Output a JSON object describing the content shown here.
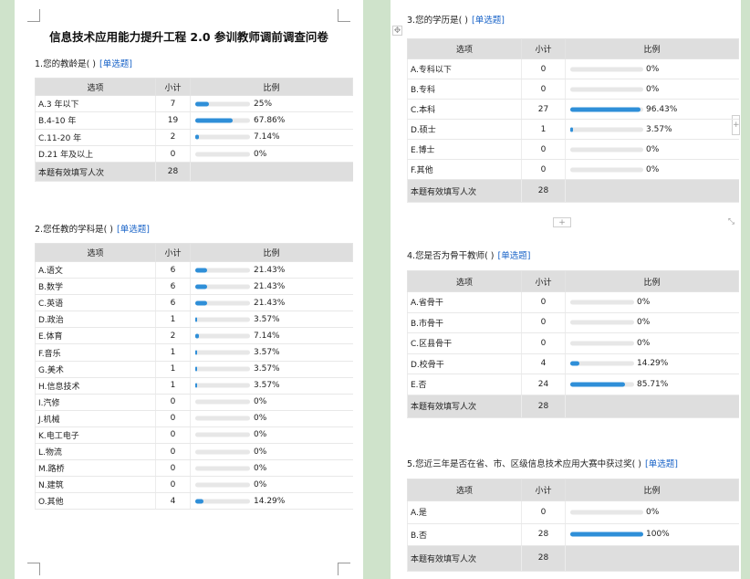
{
  "doc_title": "信息技术应用能力提升工程 2.0 参训教师调前调查问卷",
  "headers": {
    "option": "选项",
    "count": "小计",
    "ratio": "比例"
  },
  "questions": [
    {
      "title": "1.您的教龄是(    )",
      "type": "[单选题]",
      "rows": [
        {
          "option": "A.3 年以下",
          "count": "7",
          "percent": "25%",
          "value": 25
        },
        {
          "option": "B.4-10 年",
          "count": "19",
          "percent": "67.86%",
          "value": 67.86
        },
        {
          "option": "C.11-20 年",
          "count": "2",
          "percent": "7.14%",
          "value": 7.14
        },
        {
          "option": "D.21 年及以上",
          "count": "0",
          "percent": "0%",
          "value": 0
        }
      ],
      "total_label": "本题有效填写人次",
      "total": "28"
    },
    {
      "title": "2.您任教的学科是(    )",
      "type": "[单选题]",
      "rows": [
        {
          "option": "A.语文",
          "count": "6",
          "percent": "21.43%",
          "value": 21.43
        },
        {
          "option": "B.数学",
          "count": "6",
          "percent": "21.43%",
          "value": 21.43
        },
        {
          "option": "C.英语",
          "count": "6",
          "percent": "21.43%",
          "value": 21.43
        },
        {
          "option": "D.政治",
          "count": "1",
          "percent": "3.57%",
          "value": 3.57
        },
        {
          "option": "E.体育",
          "count": "2",
          "percent": "7.14%",
          "value": 7.14
        },
        {
          "option": "F.音乐",
          "count": "1",
          "percent": "3.57%",
          "value": 3.57
        },
        {
          "option": "G.美术",
          "count": "1",
          "percent": "3.57%",
          "value": 3.57
        },
        {
          "option": "H.信息技术",
          "count": "1",
          "percent": "3.57%",
          "value": 3.57
        },
        {
          "option": "I.汽修",
          "count": "0",
          "percent": "0%",
          "value": 0
        },
        {
          "option": "J.机械",
          "count": "0",
          "percent": "0%",
          "value": 0
        },
        {
          "option": "K.电工电子",
          "count": "0",
          "percent": "0%",
          "value": 0
        },
        {
          "option": "L.物流",
          "count": "0",
          "percent": "0%",
          "value": 0
        },
        {
          "option": "M.路桥",
          "count": "0",
          "percent": "0%",
          "value": 0
        },
        {
          "option": "N.建筑",
          "count": "0",
          "percent": "0%",
          "value": 0
        },
        {
          "option": "O.其他",
          "count": "4",
          "percent": "14.29%",
          "value": 14.29
        }
      ]
    },
    {
      "title": "3.您的学历是(    )",
      "type": "[单选题]",
      "rows": [
        {
          "option": "A.专科以下",
          "count": "0",
          "percent": "0%",
          "value": 0
        },
        {
          "option": "B.专科",
          "count": "0",
          "percent": "0%",
          "value": 0
        },
        {
          "option": "C.本科",
          "count": "27",
          "percent": "96.43%",
          "value": 96.43
        },
        {
          "option": "D.硕士",
          "count": "1",
          "percent": "3.57%",
          "value": 3.57
        },
        {
          "option": "E.博士",
          "count": "0",
          "percent": "0%",
          "value": 0
        },
        {
          "option": "F.其他",
          "count": "0",
          "percent": "0%",
          "value": 0
        }
      ],
      "total_label": "本题有效填写人次",
      "total": "28"
    },
    {
      "title": "4.您是否为骨干教师(    )",
      "type": "[单选题]",
      "rows": [
        {
          "option": "A.省骨干",
          "count": "0",
          "percent": "0%",
          "value": 0
        },
        {
          "option": "B.市骨干",
          "count": "0",
          "percent": "0%",
          "value": 0
        },
        {
          "option": "C.区县骨干",
          "count": "0",
          "percent": "0%",
          "value": 0
        },
        {
          "option": "D.校骨干",
          "count": "4",
          "percent": "14.29%",
          "value": 14.29
        },
        {
          "option": "E.否",
          "count": "24",
          "percent": "85.71%",
          "value": 85.71
        }
      ],
      "total_label": "本题有效填写人次",
      "total": "28"
    },
    {
      "title": "5.您近三年是否在省、市、区级信息技术应用大赛中获过奖(    )",
      "type": "[单选题]",
      "rows": [
        {
          "option": "A.是",
          "count": "0",
          "percent": "0%",
          "value": 0
        },
        {
          "option": "B.否",
          "count": "28",
          "percent": "100%",
          "value": 100
        }
      ],
      "total_label": "本题有效填写人次",
      "total": "28"
    }
  ],
  "ui": {
    "move_glyph": "✥",
    "plus_glyph": "+",
    "resize_glyph": "⤡"
  }
}
